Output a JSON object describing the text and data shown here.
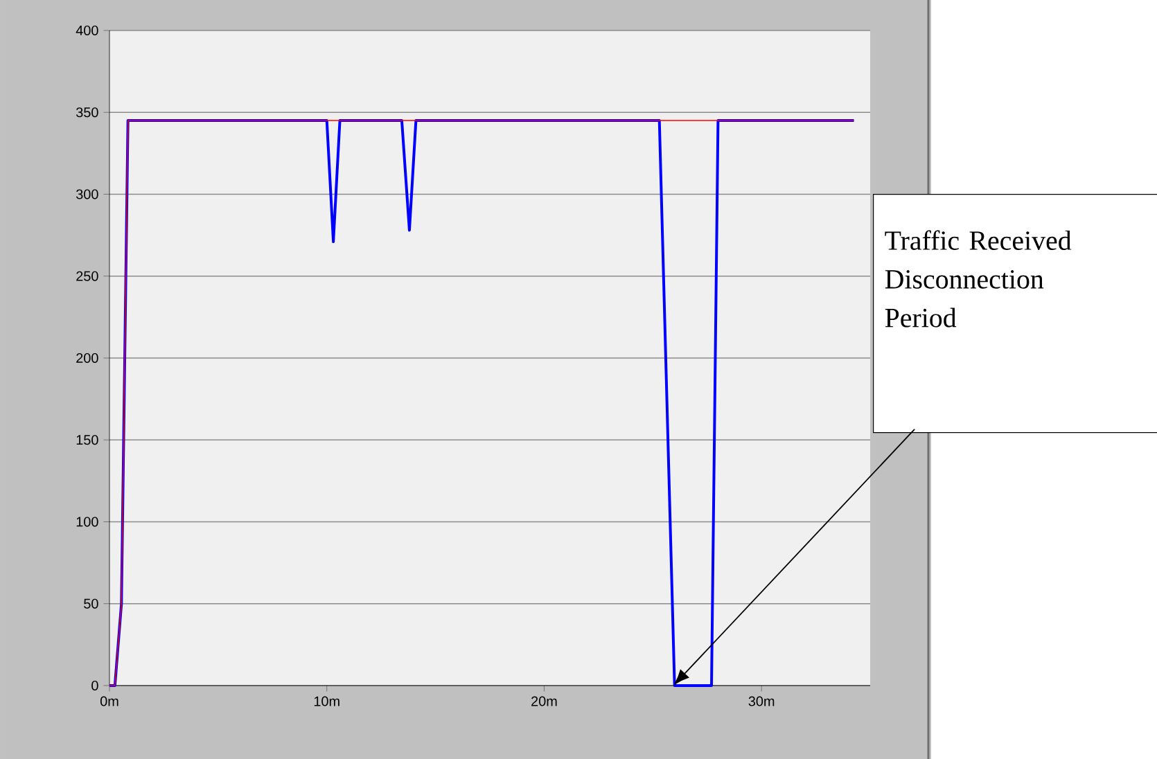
{
  "chart_data": {
    "type": "line",
    "xlim": [
      0,
      35
    ],
    "ylim": [
      0,
      400
    ],
    "xticks": [
      {
        "value": 0,
        "label": "0m"
      },
      {
        "value": 10,
        "label": "10m"
      },
      {
        "value": 20,
        "label": "20m"
      },
      {
        "value": 30,
        "label": "30m"
      }
    ],
    "yticks": [
      0,
      50,
      100,
      150,
      200,
      250,
      300,
      350,
      400
    ],
    "grid": "y",
    "series": [
      {
        "color": "#0000ff",
        "x": [
          0,
          0.25,
          0.55,
          0.85,
          10.0,
          10.3,
          10.6,
          13.45,
          13.8,
          14.1,
          25.3,
          26.0,
          27.7,
          28.0,
          34.25
        ],
        "values": [
          0,
          0,
          50,
          345,
          345,
          271,
          345,
          345,
          278,
          345,
          345,
          0,
          0,
          345,
          345
        ]
      },
      {
        "color": "#ff0000",
        "x": [
          0,
          0.25,
          0.55,
          0.85,
          34.25
        ],
        "values": [
          0,
          0,
          50,
          345,
          345
        ]
      }
    ],
    "annotations": [
      "Traffic Received Disconnection Period"
    ]
  }
}
